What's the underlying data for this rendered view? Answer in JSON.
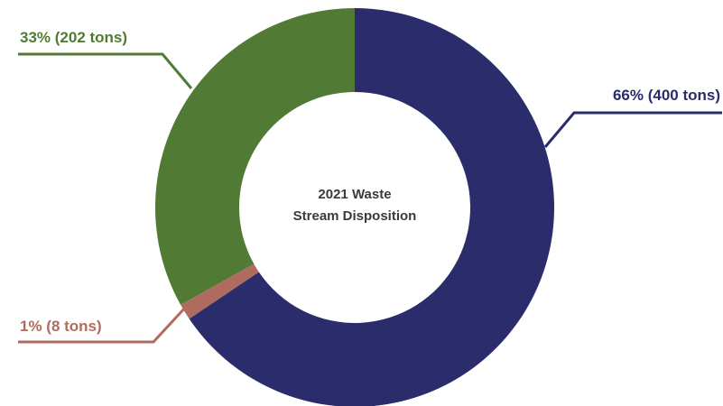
{
  "chart_data": {
    "type": "pie",
    "title_lines": [
      "2021 Waste",
      "Stream Disposition"
    ],
    "unit": "tons",
    "slices": [
      {
        "value": 400,
        "percent": 66,
        "label": "66% (400 tons)",
        "color": "#2a2c6b"
      },
      {
        "value": 8,
        "percent": 1,
        "label": "1% (8 tons)",
        "color": "#b06b60"
      },
      {
        "value": 202,
        "percent": 33,
        "label": "33% (202 tons)",
        "color": "#517a35"
      }
    ]
  }
}
